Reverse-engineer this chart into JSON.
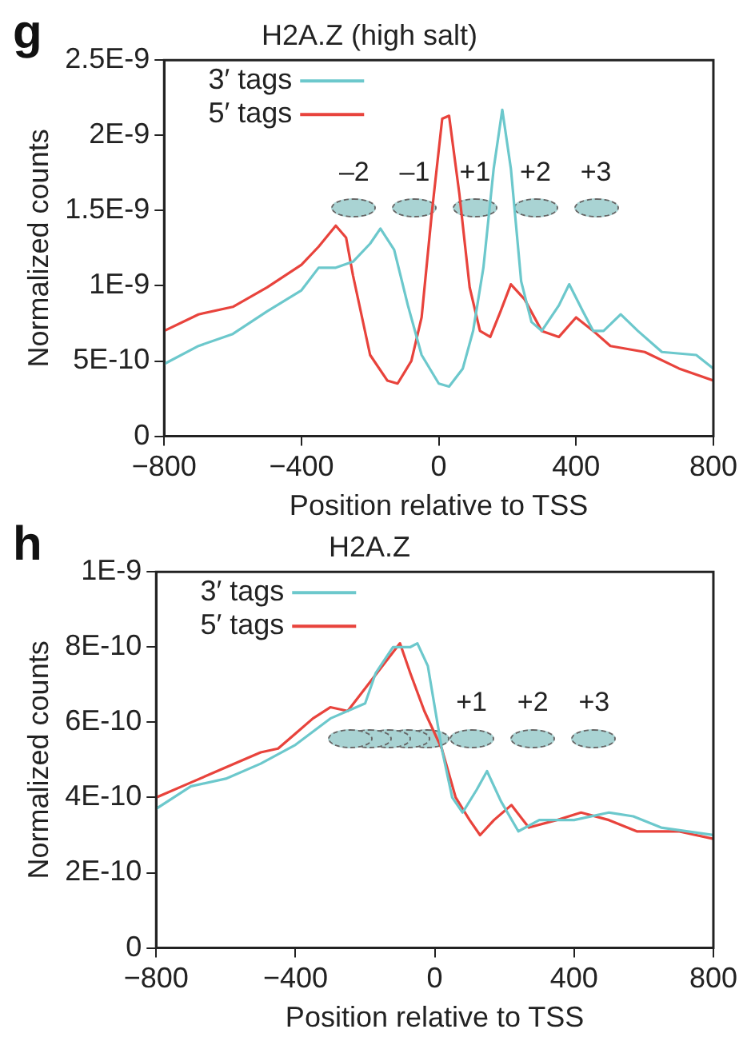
{
  "chart_data": [
    {
      "type": "line",
      "title": "H2A.Z (high salt)",
      "xlabel": "Position relative to TSS",
      "ylabel": "Normalized counts",
      "xlim": [
        -800,
        800
      ],
      "xticks": [
        -800,
        -400,
        0,
        400,
        800
      ],
      "ylim": [
        0,
        2.5e-09
      ],
      "yticks": [
        0,
        {
          "value": 5e-10,
          "label": "5E-10"
        },
        {
          "value": 1e-09,
          "label": "1E-9"
        },
        {
          "value": 1.5e-09,
          "label": "1.5E-9"
        },
        {
          "value": 2e-09,
          "label": "2E-9"
        },
        {
          "value": 2.5e-09,
          "label": "2.5E-9"
        }
      ],
      "grid": false,
      "legend": "top left",
      "annotations": [
        "g",
        "–2",
        "–1",
        "+1",
        "+2",
        "+3"
      ],
      "series": [
        {
          "name": "3′ tags",
          "color": "#6cc8cc",
          "x": [
            -800,
            -700,
            -600,
            -500,
            -400,
            -350,
            -300,
            -250,
            -200,
            -170,
            -130,
            -90,
            -50,
            0,
            30,
            70,
            100,
            130,
            160,
            185,
            210,
            240,
            270,
            300,
            350,
            380,
            420,
            450,
            480,
            530,
            580,
            650,
            750,
            800
          ],
          "values": [
            4.8e-10,
            6e-10,
            6.8e-10,
            8.3e-10,
            9.7e-10,
            1.12e-09,
            1.12e-09,
            1.16e-09,
            1.28e-09,
            1.38e-09,
            1.24e-09,
            8.7e-10,
            5.4e-10,
            3.5e-10,
            3.3e-10,
            4.5e-10,
            7e-10,
            1.12e-09,
            1.78e-09,
            2.17e-09,
            1.78e-09,
            1.03e-09,
            7.6e-10,
            7e-10,
            8.7e-10,
            1.01e-09,
            8.3e-10,
            7e-10,
            7e-10,
            8.1e-10,
            7e-10,
            5.6e-10,
            5.4e-10,
            4.5e-10
          ]
        },
        {
          "name": "5′ tags",
          "color": "#e8433c",
          "x": [
            -800,
            -700,
            -600,
            -500,
            -400,
            -350,
            -300,
            -270,
            -250,
            -200,
            -150,
            -120,
            -80,
            -50,
            -20,
            10,
            30,
            60,
            90,
            120,
            150,
            180,
            210,
            250,
            300,
            350,
            400,
            450,
            500,
            600,
            700,
            800
          ],
          "values": [
            7e-10,
            8.1e-10,
            8.6e-10,
            9.9e-10,
            1.14e-09,
            1.26e-09,
            1.4e-09,
            1.32e-09,
            1.07e-09,
            5.4e-10,
            3.7e-10,
            3.5e-10,
            5e-10,
            7.9e-10,
            1.49e-09,
            2.11e-09,
            2.13e-09,
            1.61e-09,
            9.9e-10,
            7e-10,
            6.6e-10,
            8.3e-10,
            1.01e-09,
            9.1e-10,
            7e-10,
            6.6e-10,
            7.9e-10,
            7e-10,
            6e-10,
            5.6e-10,
            4.5e-10,
            3.7e-10
          ]
        }
      ]
    },
    {
      "type": "line",
      "title": "H2A.Z",
      "xlabel": "Position relative to TSS",
      "ylabel": "Normalized counts",
      "xlim": [
        -800,
        800
      ],
      "xticks": [
        -800,
        -400,
        0,
        400,
        800
      ],
      "ylim": [
        0,
        1e-09
      ],
      "yticks": [
        0,
        {
          "value": 2e-10,
          "label": "2E-10"
        },
        {
          "value": 4e-10,
          "label": "4E-10"
        },
        {
          "value": 6e-10,
          "label": "6E-10"
        },
        {
          "value": 8e-10,
          "label": "8E-10"
        },
        {
          "value": 1e-09,
          "label": "1E-9"
        }
      ],
      "grid": false,
      "legend": "top left",
      "annotations": [
        "h",
        "+1",
        "+2",
        "+3"
      ],
      "series": [
        {
          "name": "3′ tags",
          "color": "#6cc8cc",
          "x": [
            -800,
            -700,
            -600,
            -500,
            -400,
            -300,
            -200,
            -170,
            -120,
            -70,
            -50,
            -20,
            20,
            50,
            80,
            120,
            150,
            190,
            240,
            300,
            400,
            500,
            570,
            650,
            800
          ],
          "values": [
            3.7e-10,
            4.3e-10,
            4.5e-10,
            4.9e-10,
            5.4e-10,
            6.1e-10,
            6.5e-10,
            7.3e-10,
            8e-10,
            8e-10,
            8.1e-10,
            7.5e-10,
            5.3e-10,
            4e-10,
            3.6e-10,
            4.2e-10,
            4.7e-10,
            3.9e-10,
            3.1e-10,
            3.4e-10,
            3.4e-10,
            3.6e-10,
            3.5e-10,
            3.2e-10,
            3e-10
          ]
        },
        {
          "name": "5′ tags",
          "color": "#e8433c",
          "x": [
            -800,
            -700,
            -600,
            -500,
            -450,
            -400,
            -350,
            -300,
            -250,
            -200,
            -150,
            -100,
            -70,
            -30,
            20,
            60,
            100,
            130,
            170,
            220,
            270,
            350,
            420,
            500,
            580,
            700,
            800
          ],
          "values": [
            4e-10,
            4.4e-10,
            4.8e-10,
            5.2e-10,
            5.3e-10,
            5.7e-10,
            6.1e-10,
            6.4e-10,
            6.3e-10,
            6.9e-10,
            7.5e-10,
            8.1e-10,
            7.3e-10,
            6.3e-10,
            5.3e-10,
            4e-10,
            3.4e-10,
            3e-10,
            3.4e-10,
            3.8e-10,
            3.2e-10,
            3.4e-10,
            3.6e-10,
            3.4e-10,
            3.1e-10,
            3.1e-10,
            2.9e-10
          ]
        }
      ]
    }
  ]
}
